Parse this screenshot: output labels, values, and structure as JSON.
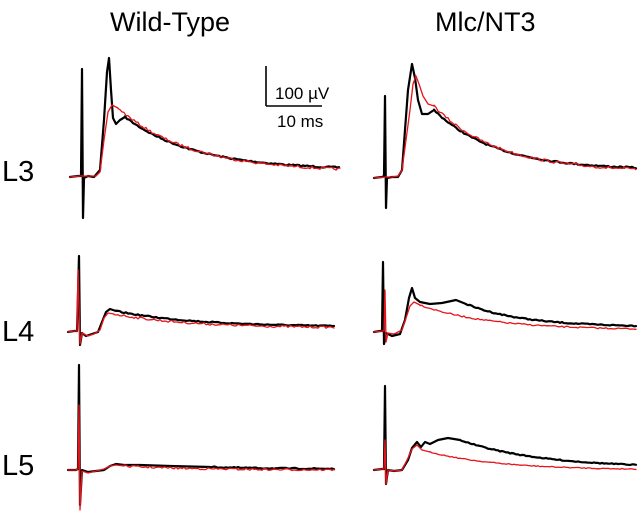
{
  "figure": {
    "columns": [
      {
        "title": "Wild-Type"
      },
      {
        "title": "Mlc/NT3"
      }
    ],
    "rows": [
      {
        "label": "L3"
      },
      {
        "label": "L4"
      },
      {
        "label": "L5"
      }
    ],
    "scale_bar": {
      "amplitude_label": "100 µV",
      "time_label": "10 ms"
    },
    "trace_colors": {
      "black_trace": "#000000",
      "red_trace": "#e8141b"
    }
  }
}
